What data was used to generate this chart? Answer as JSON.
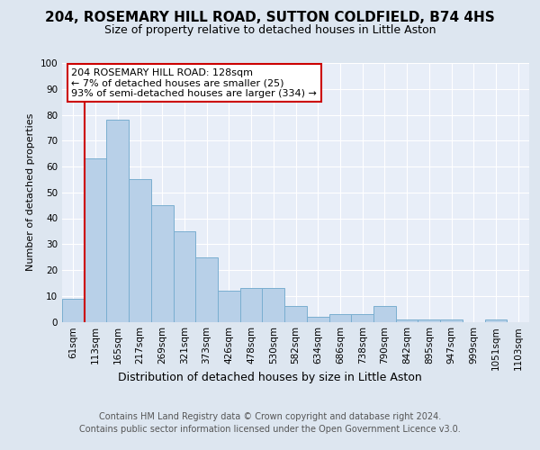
{
  "title": "204, ROSEMARY HILL ROAD, SUTTON COLDFIELD, B74 4HS",
  "subtitle": "Size of property relative to detached houses in Little Aston",
  "xlabel": "Distribution of detached houses by size in Little Aston",
  "ylabel": "Number of detached properties",
  "bin_labels": [
    "61sqm",
    "113sqm",
    "165sqm",
    "217sqm",
    "269sqm",
    "321sqm",
    "373sqm",
    "426sqm",
    "478sqm",
    "530sqm",
    "582sqm",
    "634sqm",
    "686sqm",
    "738sqm",
    "790sqm",
    "842sqm",
    "895sqm",
    "947sqm",
    "999sqm",
    "1051sqm",
    "1103sqm"
  ],
  "bar_heights": [
    9,
    63,
    78,
    55,
    45,
    35,
    25,
    12,
    13,
    13,
    6,
    2,
    3,
    3,
    6,
    1,
    1,
    1,
    0,
    1,
    0
  ],
  "bar_color": "#b8d0e8",
  "bar_edge_color": "#7aaed0",
  "vline_x": 1.0,
  "vline_color": "#cc0000",
  "annotation_text": "204 ROSEMARY HILL ROAD: 128sqm\n← 7% of detached houses are smaller (25)\n93% of semi-detached houses are larger (334) →",
  "annotation_box_facecolor": "#ffffff",
  "annotation_box_edgecolor": "#cc0000",
  "footer_line1": "Contains HM Land Registry data © Crown copyright and database right 2024.",
  "footer_line2": "Contains public sector information licensed under the Open Government Licence v3.0.",
  "ylim": [
    0,
    100
  ],
  "bg_color": "#dde6f0",
  "plot_bg_color": "#e8eef8",
  "grid_color": "#ffffff",
  "title_fontsize": 11,
  "subtitle_fontsize": 9,
  "ylabel_fontsize": 8,
  "xlabel_fontsize": 9,
  "tick_fontsize": 7.5,
  "footer_fontsize": 7
}
